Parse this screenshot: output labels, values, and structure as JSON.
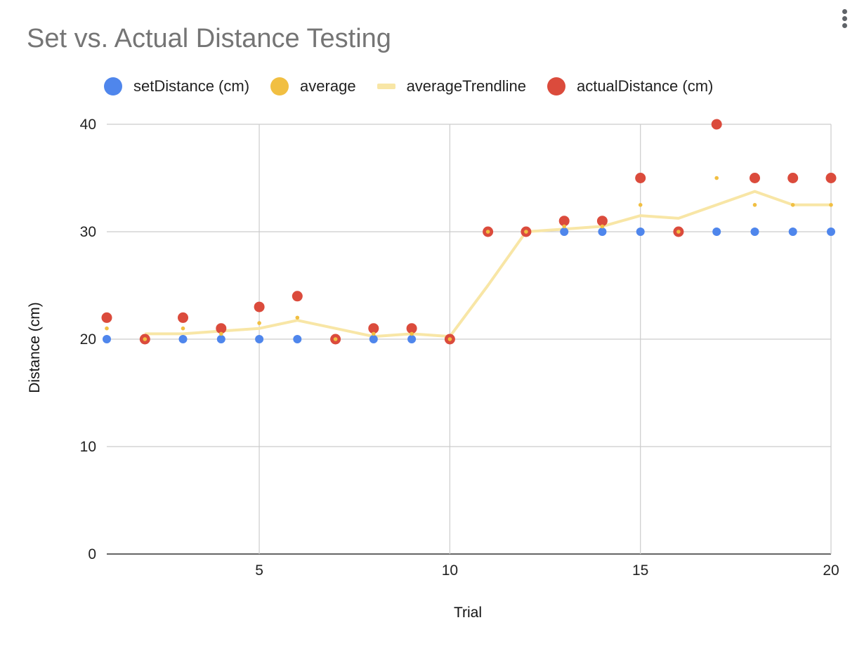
{
  "chart_data": {
    "type": "scatter",
    "title": "Set vs. Actual Distance Testing",
    "xlabel": "Trial",
    "ylabel": "Distance (cm)",
    "xlim": [
      1,
      20
    ],
    "ylim": [
      0,
      40
    ],
    "xticks": [
      5,
      10,
      15,
      20
    ],
    "yticks": [
      0,
      10,
      20,
      30,
      40
    ],
    "grid": true,
    "legend_position": "top",
    "x": [
      1,
      2,
      3,
      4,
      5,
      6,
      7,
      8,
      9,
      10,
      11,
      12,
      13,
      14,
      15,
      16,
      17,
      18,
      19,
      20
    ],
    "series": [
      {
        "name": "setDistance (cm)",
        "kind": "points",
        "color": "#4f86ec",
        "values": [
          20,
          20,
          20,
          20,
          20,
          20,
          20,
          20,
          20,
          20,
          30,
          30,
          30,
          30,
          30,
          30,
          30,
          30,
          30,
          30
        ]
      },
      {
        "name": "average",
        "kind": "points",
        "color": "#f1bf42",
        "values": [
          21,
          20,
          21,
          20.5,
          21.5,
          22,
          20,
          20.5,
          20.5,
          20,
          30,
          30,
          30.5,
          30.5,
          32.5,
          30,
          35,
          32.5,
          32.5,
          32.5
        ]
      },
      {
        "name": "averageTrendline",
        "kind": "line",
        "color": "#f8e6a6",
        "values": [
          null,
          20.5,
          20.5,
          20.75,
          21,
          21.75,
          21,
          20.25,
          20.5,
          20.25,
          25,
          30,
          30.25,
          30.5,
          31.5,
          31.25,
          32.5,
          33.75,
          32.5,
          32.5
        ]
      },
      {
        "name": "actualDistance (cm)",
        "kind": "points",
        "color": "#db4b3c",
        "values": [
          22,
          20,
          22,
          21,
          23,
          24,
          20,
          21,
          21,
          20,
          30,
          30,
          31,
          31,
          35,
          30,
          40,
          35,
          35,
          35
        ]
      }
    ]
  }
}
